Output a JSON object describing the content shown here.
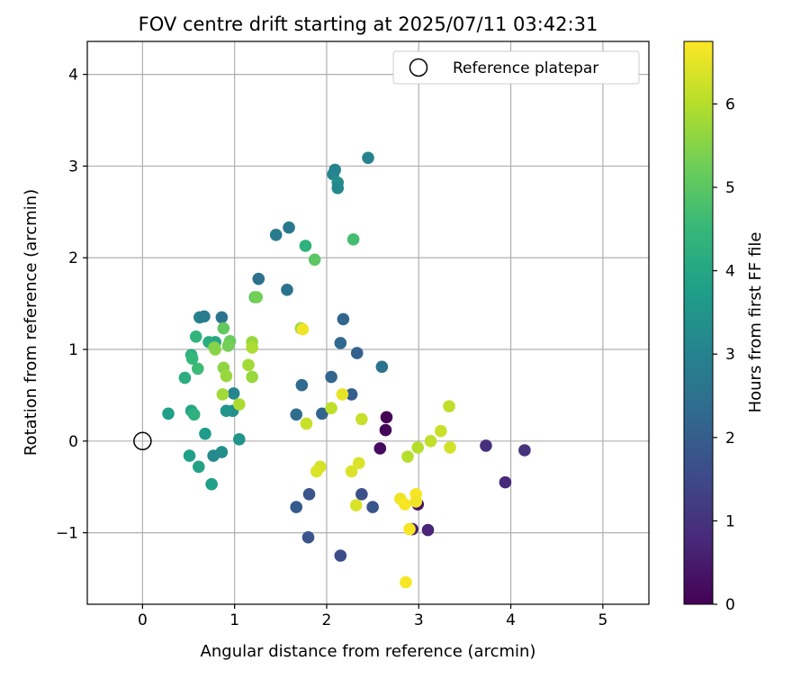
{
  "chart_data": {
    "type": "scatter",
    "title": "FOV centre drift starting at 2025/07/11 03:42:31",
    "xlabel": "Angular distance from reference (arcmin)",
    "ylabel": "Rotation from reference (arcmin)",
    "xlim": [
      -0.6,
      5.5
    ],
    "ylim": [
      -1.78,
      4.36
    ],
    "xticks": [
      0,
      1,
      2,
      3,
      4,
      5
    ],
    "yticks": [
      -1,
      0,
      1,
      2,
      3,
      4
    ],
    "xtick_labels": [
      "0",
      "1",
      "2",
      "3",
      "4",
      "5"
    ],
    "ytick_labels": [
      "−1",
      "0",
      "1",
      "2",
      "3",
      "4"
    ],
    "grid": true,
    "legend": {
      "location": "top-right",
      "entries": [
        "Reference platepar"
      ]
    },
    "colorbar": {
      "label": "Hours from first FF file",
      "range": [
        0,
        6.75
      ],
      "ticks": [
        0,
        1,
        2,
        3,
        4,
        5,
        6
      ],
      "tick_labels": [
        "0",
        "1",
        "2",
        "3",
        "4",
        "5",
        "6"
      ],
      "colormap": "viridis",
      "colormap_stops": [
        "#440154",
        "#482878",
        "#3e4989",
        "#31688e",
        "#26828e",
        "#1f9e89",
        "#35b779",
        "#6ece58",
        "#b5de2b",
        "#fde725"
      ]
    },
    "reference_point": {
      "x": 0,
      "y": 0,
      "label": "Reference platepar"
    },
    "points": [
      {
        "x": 2.65,
        "y": 0.26,
        "c": 0.05
      },
      {
        "x": 2.64,
        "y": 0.12,
        "c": 0.1
      },
      {
        "x": 2.58,
        "y": -0.08,
        "c": 0.2
      },
      {
        "x": 2.99,
        "y": -0.69,
        "c": 0.35
      },
      {
        "x": 3.1,
        "y": -0.97,
        "c": 0.7
      },
      {
        "x": 2.93,
        "y": -0.96,
        "c": 0.5
      },
      {
        "x": 3.73,
        "y": -0.05,
        "c": 0.9
      },
      {
        "x": 3.94,
        "y": -0.45,
        "c": 0.8
      },
      {
        "x": 4.15,
        "y": -0.1,
        "c": 1.0
      },
      {
        "x": 2.15,
        "y": -1.25,
        "c": 1.6
      },
      {
        "x": 1.8,
        "y": -1.05,
        "c": 1.8
      },
      {
        "x": 1.67,
        "y": -0.72,
        "c": 1.9
      },
      {
        "x": 1.81,
        "y": -0.58,
        "c": 1.8
      },
      {
        "x": 2.38,
        "y": -0.58,
        "c": 1.7
      },
      {
        "x": 2.5,
        "y": -0.72,
        "c": 1.8
      },
      {
        "x": 2.27,
        "y": 0.51,
        "c": 2.0
      },
      {
        "x": 1.95,
        "y": 0.3,
        "c": 2.2
      },
      {
        "x": 1.67,
        "y": 0.29,
        "c": 2.4
      },
      {
        "x": 1.73,
        "y": 0.61,
        "c": 2.3
      },
      {
        "x": 2.05,
        "y": 0.7,
        "c": 2.2
      },
      {
        "x": 2.33,
        "y": 0.96,
        "c": 2.1
      },
      {
        "x": 2.6,
        "y": 0.81,
        "c": 2.6
      },
      {
        "x": 2.15,
        "y": 1.07,
        "c": 2.3
      },
      {
        "x": 2.18,
        "y": 1.33,
        "c": 2.2
      },
      {
        "x": 1.57,
        "y": 1.65,
        "c": 2.6
      },
      {
        "x": 1.26,
        "y": 1.77,
        "c": 2.5
      },
      {
        "x": 1.45,
        "y": 2.25,
        "c": 2.8
      },
      {
        "x": 1.59,
        "y": 2.33,
        "c": 2.7
      },
      {
        "x": 2.07,
        "y": 2.91,
        "c": 3.1
      },
      {
        "x": 2.09,
        "y": 2.96,
        "c": 3.0
      },
      {
        "x": 2.12,
        "y": 2.82,
        "c": 3.3
      },
      {
        "x": 2.12,
        "y": 2.76,
        "c": 3.2
      },
      {
        "x": 2.45,
        "y": 3.09,
        "c": 3.0
      },
      {
        "x": 0.62,
        "y": 1.35,
        "c": 3.0
      },
      {
        "x": 0.67,
        "y": 1.36,
        "c": 2.8
      },
      {
        "x": 0.86,
        "y": 1.35,
        "c": 2.6
      },
      {
        "x": 0.99,
        "y": 0.52,
        "c": 3.1
      },
      {
        "x": 0.98,
        "y": 0.33,
        "c": 3.3
      },
      {
        "x": 0.91,
        "y": 0.33,
        "c": 3.5
      },
      {
        "x": 1.05,
        "y": 0.02,
        "c": 3.5
      },
      {
        "x": 0.68,
        "y": 0.08,
        "c": 3.7
      },
      {
        "x": 0.86,
        "y": -0.12,
        "c": 3.3
      },
      {
        "x": 0.77,
        "y": -0.16,
        "c": 3.2
      },
      {
        "x": 0.51,
        "y": -0.16,
        "c": 3.8
      },
      {
        "x": 0.61,
        "y": -0.28,
        "c": 3.9
      },
      {
        "x": 0.75,
        "y": -0.47,
        "c": 3.8
      },
      {
        "x": 0.28,
        "y": 0.3,
        "c": 3.8
      },
      {
        "x": 0.53,
        "y": 0.33,
        "c": 4.0
      },
      {
        "x": 0.56,
        "y": 0.29,
        "c": 4.3
      },
      {
        "x": 0.46,
        "y": 0.69,
        "c": 4.2
      },
      {
        "x": 0.53,
        "y": 0.94,
        "c": 4.3
      },
      {
        "x": 0.54,
        "y": 0.9,
        "c": 4.5
      },
      {
        "x": 0.6,
        "y": 0.79,
        "c": 4.6
      },
      {
        "x": 0.58,
        "y": 1.14,
        "c": 4.4
      },
      {
        "x": 0.72,
        "y": 1.08,
        "c": 4.2
      },
      {
        "x": 0.79,
        "y": 1.08,
        "c": 4.0
      },
      {
        "x": 1.77,
        "y": 2.13,
        "c": 4.3
      },
      {
        "x": 2.29,
        "y": 2.2,
        "c": 4.7
      },
      {
        "x": 1.87,
        "y": 1.98,
        "c": 5.0
      },
      {
        "x": 1.22,
        "y": 1.57,
        "c": 5.1
      },
      {
        "x": 1.24,
        "y": 1.57,
        "c": 5.3
      },
      {
        "x": 0.88,
        "y": 1.23,
        "c": 5.1
      },
      {
        "x": 0.95,
        "y": 1.09,
        "c": 5.2
      },
      {
        "x": 0.93,
        "y": 1.04,
        "c": 5.3
      },
      {
        "x": 0.79,
        "y": 1.0,
        "c": 5.6
      },
      {
        "x": 0.78,
        "y": 1.02,
        "c": 5.5
      },
      {
        "x": 0.88,
        "y": 0.8,
        "c": 5.6
      },
      {
        "x": 0.91,
        "y": 0.71,
        "c": 5.7
      },
      {
        "x": 0.87,
        "y": 0.51,
        "c": 5.8
      },
      {
        "x": 1.05,
        "y": 0.4,
        "c": 5.9
      },
      {
        "x": 1.19,
        "y": 1.08,
        "c": 5.7
      },
      {
        "x": 1.19,
        "y": 1.02,
        "c": 5.9
      },
      {
        "x": 1.15,
        "y": 0.83,
        "c": 5.8
      },
      {
        "x": 1.19,
        "y": 0.7,
        "c": 5.7
      },
      {
        "x": 1.72,
        "y": 1.23,
        "c": 5.7
      },
      {
        "x": 2.05,
        "y": 0.36,
        "c": 6.1
      },
      {
        "x": 2.38,
        "y": 0.24,
        "c": 6.2
      },
      {
        "x": 1.78,
        "y": 0.19,
        "c": 6.2
      },
      {
        "x": 2.88,
        "y": -0.17,
        "c": 6.0
      },
      {
        "x": 2.99,
        "y": -0.07,
        "c": 6.0
      },
      {
        "x": 3.13,
        "y": 0.0,
        "c": 6.1
      },
      {
        "x": 3.24,
        "y": 0.11,
        "c": 6.2
      },
      {
        "x": 3.33,
        "y": 0.38,
        "c": 6.1
      },
      {
        "x": 3.34,
        "y": -0.07,
        "c": 6.3
      },
      {
        "x": 1.93,
        "y": -0.28,
        "c": 6.3
      },
      {
        "x": 1.89,
        "y": -0.33,
        "c": 6.4
      },
      {
        "x": 2.27,
        "y": -0.33,
        "c": 6.4
      },
      {
        "x": 2.35,
        "y": -0.24,
        "c": 6.4
      },
      {
        "x": 2.32,
        "y": -0.7,
        "c": 6.4
      },
      {
        "x": 2.17,
        "y": 0.51,
        "c": 6.5
      },
      {
        "x": 1.74,
        "y": 1.22,
        "c": 6.6
      },
      {
        "x": 2.8,
        "y": -0.63,
        "c": 6.6
      },
      {
        "x": 2.85,
        "y": -0.69,
        "c": 6.7
      },
      {
        "x": 2.97,
        "y": -0.58,
        "c": 6.7
      },
      {
        "x": 2.97,
        "y": -0.66,
        "c": 6.6
      },
      {
        "x": 2.9,
        "y": -0.96,
        "c": 6.7
      },
      {
        "x": 2.86,
        "y": -1.54,
        "c": 6.7
      }
    ]
  }
}
